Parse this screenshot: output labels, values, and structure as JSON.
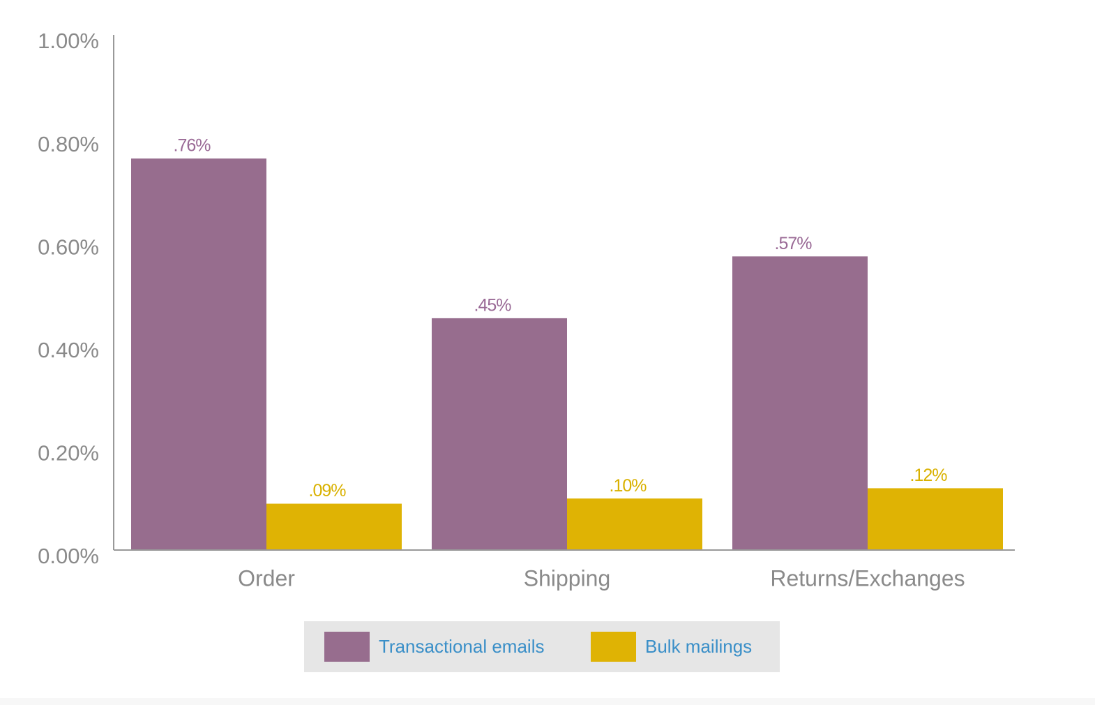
{
  "chart_data": {
    "type": "bar",
    "categories": [
      "Order",
      "Shipping",
      "Returns/Exchanges"
    ],
    "series": [
      {
        "name": "Transactional emails",
        "color": "#976d8e",
        "values": [
          0.76,
          0.45,
          0.57
        ],
        "value_labels": [
          ".76%",
          ".45%",
          ".57%"
        ]
      },
      {
        "name": "Bulk mailings",
        "color": "#dfb304",
        "values": [
          0.09,
          0.1,
          0.12
        ],
        "value_labels": [
          ".09%",
          ".10%",
          ".12%"
        ]
      }
    ],
    "ylim": [
      0,
      1
    ],
    "yticks": [
      {
        "value": 0,
        "label": "0.00%"
      },
      {
        "value": 0.2,
        "label": "0.20%"
      },
      {
        "value": 0.4,
        "label": "0.40%"
      },
      {
        "value": 0.6,
        "label": "0.60%"
      },
      {
        "value": 0.8,
        "label": "0.80%"
      },
      {
        "value": 1,
        "label": "1.00%"
      }
    ],
    "legend": "bottom"
  }
}
